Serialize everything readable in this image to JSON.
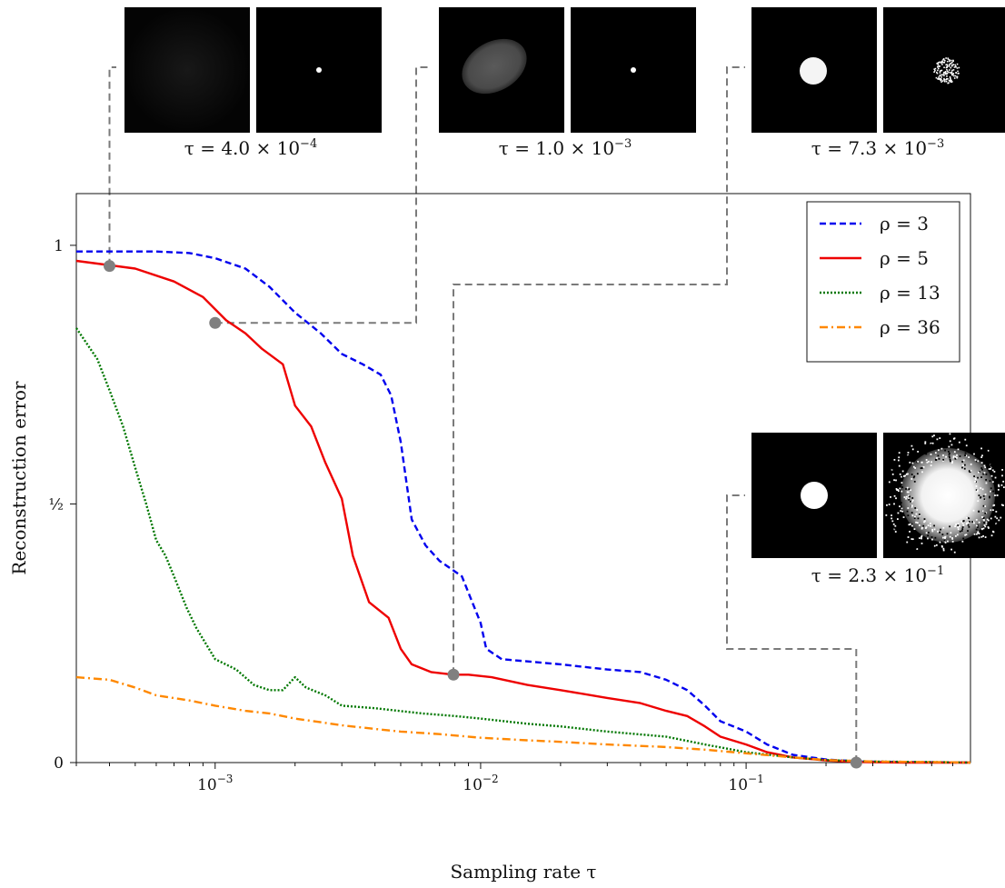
{
  "chart_data": {
    "type": "line",
    "xlabel": "Sampling rate τ",
    "ylabel": "Reconstruction error",
    "xscale": "log",
    "xlim": [
      0.0003,
      0.7
    ],
    "ylim": [
      0,
      1.1
    ],
    "x_ticks": [
      {
        "value": 0.001,
        "base": "10",
        "exp": "−3"
      },
      {
        "value": 0.01,
        "base": "10",
        "exp": "−2"
      },
      {
        "value": 0.1,
        "base": "10",
        "exp": "−1"
      }
    ],
    "y_ticks": [
      {
        "value": 0,
        "label": "0"
      },
      {
        "value": 0.5,
        "label": "½"
      },
      {
        "value": 1,
        "label": "1"
      }
    ],
    "grid": false,
    "legend_position": "top-right",
    "series": [
      {
        "name": "ρ = 3",
        "color": "#0000ee",
        "style": "dashed",
        "x": [
          0.0003,
          0.0006,
          0.0008,
          0.001,
          0.0013,
          0.0016,
          0.002,
          0.0025,
          0.003,
          0.0036,
          0.0042,
          0.0046,
          0.005,
          0.0055,
          0.0062,
          0.007,
          0.0085,
          0.01,
          0.0105,
          0.012,
          0.02,
          0.03,
          0.04,
          0.05,
          0.06,
          0.07,
          0.08,
          0.1,
          0.12,
          0.15,
          0.2,
          0.27,
          0.4,
          0.7
        ],
        "y": [
          0.988,
          0.988,
          0.985,
          0.975,
          0.955,
          0.92,
          0.87,
          0.83,
          0.79,
          0.77,
          0.75,
          0.71,
          0.62,
          0.47,
          0.42,
          0.39,
          0.36,
          0.27,
          0.22,
          0.2,
          0.19,
          0.18,
          0.175,
          0.16,
          0.14,
          0.11,
          0.08,
          0.06,
          0.035,
          0.015,
          0.006,
          0.002,
          0.001,
          0.0
        ]
      },
      {
        "name": "ρ = 5",
        "color": "#ee0000",
        "style": "solid",
        "x": [
          0.0003,
          0.0005,
          0.0007,
          0.0009,
          0.0011,
          0.0013,
          0.0015,
          0.0018,
          0.002,
          0.0023,
          0.0026,
          0.003,
          0.0033,
          0.0038,
          0.0045,
          0.005,
          0.0055,
          0.0065,
          0.0079,
          0.009,
          0.011,
          0.015,
          0.02,
          0.03,
          0.04,
          0.05,
          0.06,
          0.07,
          0.08,
          0.1,
          0.12,
          0.15,
          0.2,
          0.27,
          0.4,
          0.7
        ],
        "y": [
          0.97,
          0.955,
          0.93,
          0.9,
          0.855,
          0.83,
          0.8,
          0.77,
          0.69,
          0.65,
          0.58,
          0.51,
          0.4,
          0.31,
          0.28,
          0.22,
          0.19,
          0.175,
          0.17,
          0.17,
          0.165,
          0.15,
          0.14,
          0.125,
          0.115,
          0.1,
          0.09,
          0.07,
          0.05,
          0.035,
          0.02,
          0.01,
          0.004,
          0.001,
          0.0,
          0.0
        ]
      },
      {
        "name": "ρ = 13",
        "color": "#007700",
        "style": "dotted",
        "x": [
          0.0003,
          0.00036,
          0.0004,
          0.00045,
          0.0005,
          0.00055,
          0.0006,
          0.00065,
          0.0007,
          0.00078,
          0.00085,
          0.001,
          0.0012,
          0.0014,
          0.0016,
          0.0018,
          0.002,
          0.0022,
          0.0026,
          0.003,
          0.004,
          0.006,
          0.008,
          0.01,
          0.015,
          0.02,
          0.03,
          0.05,
          0.07,
          0.1,
          0.15,
          0.2,
          0.3,
          0.5,
          0.7
        ],
        "y": [
          0.84,
          0.78,
          0.72,
          0.65,
          0.57,
          0.5,
          0.43,
          0.4,
          0.36,
          0.3,
          0.26,
          0.2,
          0.18,
          0.15,
          0.14,
          0.14,
          0.165,
          0.145,
          0.13,
          0.11,
          0.105,
          0.095,
          0.09,
          0.085,
          0.075,
          0.07,
          0.06,
          0.05,
          0.035,
          0.02,
          0.01,
          0.005,
          0.002,
          0.001,
          0.0
        ]
      },
      {
        "name": "ρ = 36",
        "color": "#ff8800",
        "style": "dashdot",
        "x": [
          0.0003,
          0.0004,
          0.0005,
          0.0006,
          0.0008,
          0.001,
          0.0013,
          0.0016,
          0.002,
          0.0025,
          0.003,
          0.004,
          0.005,
          0.007,
          0.01,
          0.015,
          0.02,
          0.03,
          0.05,
          0.07,
          0.1,
          0.15,
          0.2,
          0.3,
          0.5,
          0.7
        ],
        "y": [
          0.165,
          0.16,
          0.145,
          0.13,
          0.12,
          0.11,
          0.1,
          0.095,
          0.085,
          0.078,
          0.072,
          0.065,
          0.06,
          0.055,
          0.048,
          0.043,
          0.04,
          0.035,
          0.03,
          0.025,
          0.018,
          0.01,
          0.005,
          0.002,
          0.001,
          0.0
        ]
      }
    ],
    "highlight_points": [
      {
        "x": 0.0004,
        "y": 0.96
      },
      {
        "x": 0.001,
        "y": 0.85
      },
      {
        "x": 0.0079,
        "y": 0.17
      },
      {
        "x": 0.26,
        "y": 0.0
      }
    ],
    "insets": [
      {
        "caption": "τ = 4.0 × 10",
        "exp": "−4",
        "left_blob": "faint",
        "right_blob": "dot"
      },
      {
        "caption": "τ = 1.0 × 10",
        "exp": "−3",
        "left_blob": "ellipse",
        "right_blob": "dot"
      },
      {
        "caption": "τ = 7.3 × 10",
        "exp": "−3",
        "left_blob": "disk",
        "right_blob": "speckle"
      },
      {
        "caption": "τ = 2.3 × 10",
        "exp": "−1",
        "left_blob": "disk-hard",
        "right_blob": "cloud"
      }
    ]
  }
}
